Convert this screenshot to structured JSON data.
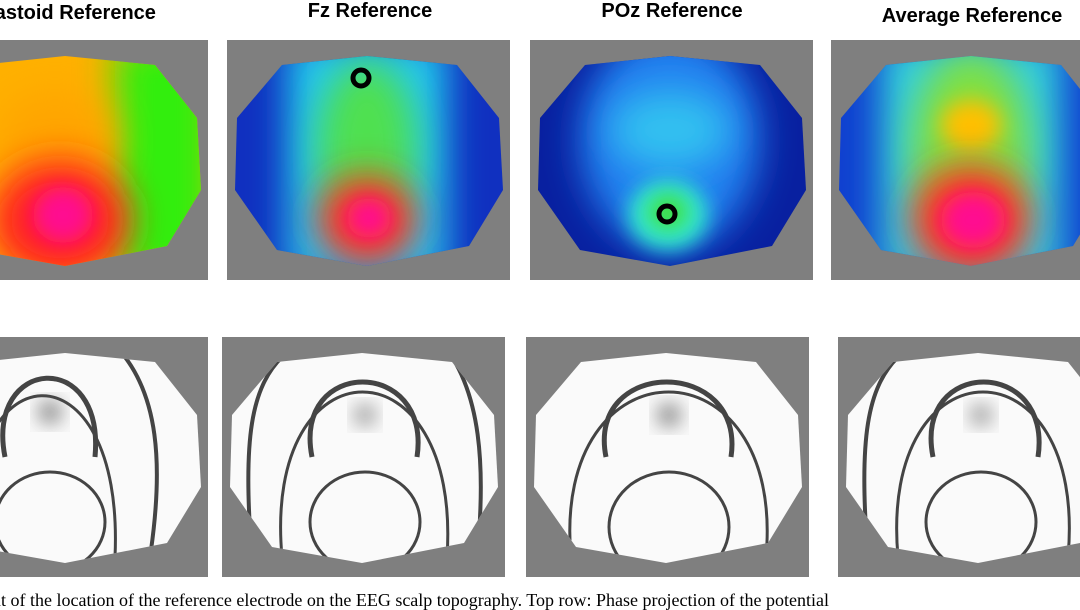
{
  "figure": {
    "titles": [
      "Mastoid Reference",
      "Fz Reference",
      "POz Reference",
      "Average Reference"
    ],
    "caption": "nt of the location of the reference electrode on the EEG scalp topography. Top row: Phase projection of the potential"
  }
}
